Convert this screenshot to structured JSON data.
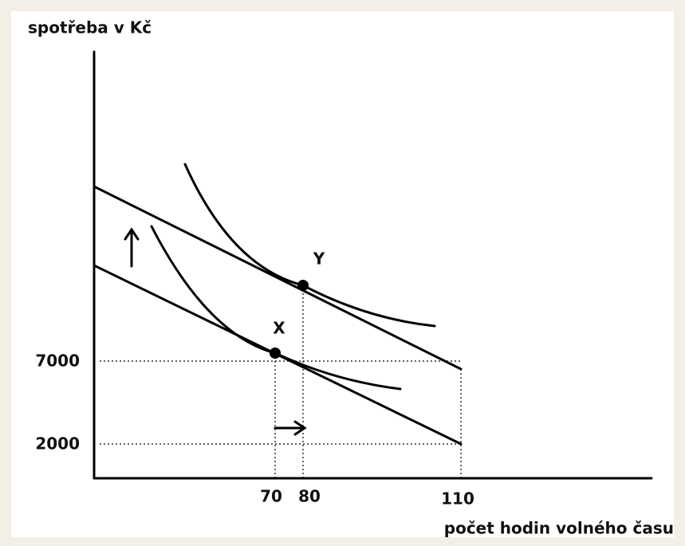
{
  "axes": {
    "y_label": "spotřeba v Kč",
    "x_label": "počet hodin volného času"
  },
  "y_ticks": [
    "7000",
    "2000"
  ],
  "x_ticks": [
    "70",
    "80",
    "110"
  ],
  "points": [
    "X",
    "Y"
  ]
}
